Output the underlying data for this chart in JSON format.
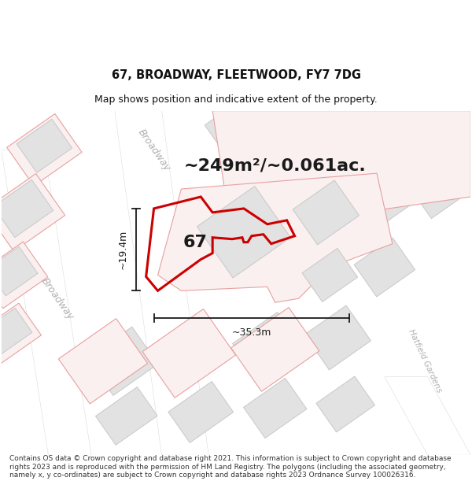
{
  "title": "67, BROADWAY, FLEETWOOD, FY7 7DG",
  "subtitle": "Map shows position and indicative extent of the property.",
  "area_text": "~249m²/~0.061ac.",
  "label_67": "67",
  "dim_height": "~19.4m",
  "dim_width": "~35.3m",
  "street_broadway_top": "Broadway",
  "street_broadway_left": "Broadway",
  "street_hatfield": "Hatfield Gardens",
  "footer": "Contains OS data © Crown copyright and database right 2021. This information is subject to Crown copyright and database rights 2023 and is reproduced with the permission of HM Land Registry. The polygons (including the associated geometry, namely x, y co-ordinates) are subject to Crown copyright and database rights 2023 Ordnance Survey 100026316.",
  "bg_color": "#ffffff",
  "map_bg": "#f2f2f2",
  "block_fill": "#e2e2e2",
  "block_edge": "#c8c8c8",
  "pink_edge": "#e8a0a0",
  "pink_fill": "#faf0f0",
  "road_fill": "#ffffff",
  "highlight_color": "#cc0000",
  "highlight_fill": "none",
  "dim_color": "#1a1a1a",
  "street_color": "#b0b0b0",
  "title_color": "#111111",
  "footer_color": "#333333",
  "title_fontsize": 10.5,
  "subtitle_fontsize": 9,
  "area_fontsize": 16,
  "label_fontsize": 16,
  "street_fontsize": 9,
  "footer_fontsize": 6.5,
  "dim_fontsize": 9
}
